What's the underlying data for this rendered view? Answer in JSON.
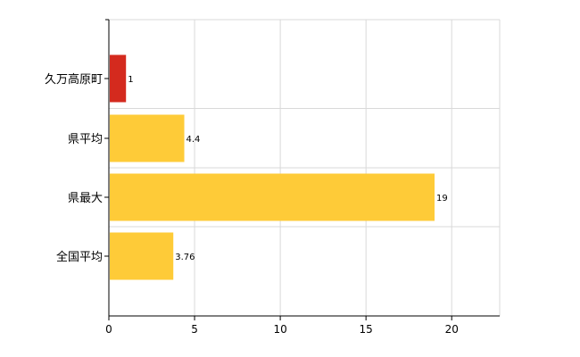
{
  "chart_data": {
    "type": "bar",
    "orientation": "horizontal",
    "categories": [
      "久万高原町",
      "県平均",
      "県最大",
      "全国平均"
    ],
    "values": [
      1,
      4.4,
      19,
      3.76
    ],
    "data_labels": [
      "1",
      "4.4",
      "19",
      "3.76"
    ],
    "bar_colors": [
      "#d42a1e",
      "#fecb38",
      "#fecb38",
      "#fecb38"
    ],
    "xlim": [
      0,
      22.8
    ],
    "xticks": [
      0,
      5,
      10,
      15,
      20
    ],
    "xtick_labels": [
      "0",
      "5",
      "10",
      "15",
      "20"
    ],
    "grid": true,
    "title": "",
    "xlabel": "",
    "ylabel": ""
  }
}
